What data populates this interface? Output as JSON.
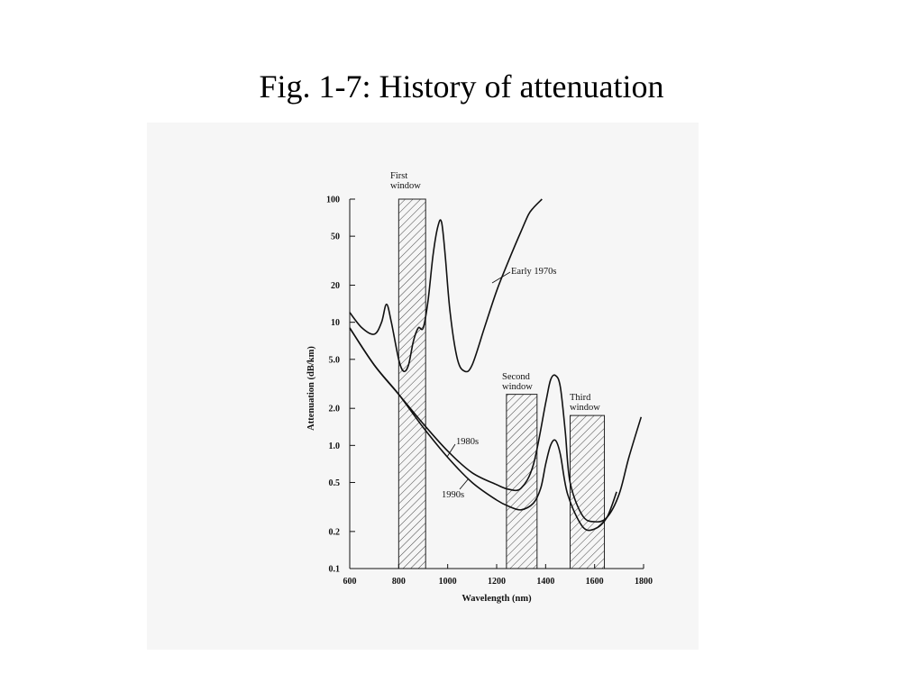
{
  "slide": {
    "title": "Fig. 1-7: History of attenuation"
  },
  "chart_data": {
    "type": "line",
    "xlabel": "Wavelength (nm)",
    "ylabel": "Attenuation (dB/km)",
    "xlim": [
      600,
      1800
    ],
    "ylim": [
      0.1,
      100
    ],
    "yscale": "log",
    "grid": false,
    "x_ticks": [
      600,
      800,
      1000,
      1200,
      1400,
      1600,
      1800
    ],
    "x_tick_labels": [
      "600",
      "800",
      "1000",
      "1200",
      "1400",
      "1600",
      "1800"
    ],
    "y_ticks": [
      0.1,
      0.2,
      0.5,
      1.0,
      2.0,
      5.0,
      10,
      20,
      50,
      100
    ],
    "y_tick_labels": [
      "0.1",
      "0.2",
      "0.5",
      "1.0",
      "2.0",
      "5.0",
      "10",
      "20",
      "50",
      "100"
    ],
    "windows": [
      {
        "label": [
          "First",
          "window"
        ],
        "x_range": [
          800,
          910
        ],
        "top": 100
      },
      {
        "label": [
          "Second",
          "window"
        ],
        "x_range": [
          1240,
          1365
        ],
        "top": 2.6
      },
      {
        "label": [
          "Third",
          "window"
        ],
        "x_range": [
          1500,
          1640
        ],
        "top": 1.75
      }
    ],
    "series": [
      {
        "name": "Early 1970s",
        "x": [
          600,
          650,
          700,
          730,
          750,
          770,
          800,
          820,
          840,
          860,
          880,
          900,
          920,
          940,
          960,
          975,
          990,
          1010,
          1040,
          1070,
          1100,
          1150,
          1200,
          1250,
          1300,
          1330,
          1350,
          1385
        ],
        "y": [
          12,
          9,
          8,
          10,
          14,
          10,
          5,
          4,
          4.5,
          7,
          9,
          9,
          15,
          35,
          60,
          65,
          35,
          12,
          5,
          4,
          4.5,
          9,
          18,
          32,
          55,
          75,
          85,
          100
        ]
      },
      {
        "name": "1980s",
        "x": [
          600,
          700,
          800,
          900,
          1000,
          1100,
          1200,
          1250,
          1300,
          1350,
          1400,
          1420,
          1440,
          1460,
          1480,
          1500,
          1550,
          1600,
          1650,
          1700,
          1740,
          1790
        ],
        "y": [
          9,
          4.5,
          2.6,
          1.5,
          0.9,
          0.6,
          0.48,
          0.44,
          0.45,
          0.7,
          2.2,
          3.4,
          3.7,
          3.0,
          1.3,
          0.5,
          0.27,
          0.24,
          0.26,
          0.4,
          0.8,
          1.7
        ]
      },
      {
        "name": "1990s",
        "x": [
          600,
          700,
          800,
          900,
          1000,
          1100,
          1200,
          1250,
          1300,
          1350,
          1380,
          1400,
          1420,
          1440,
          1460,
          1490,
          1550,
          1600,
          1650,
          1690
        ],
        "y": [
          9,
          4.5,
          2.6,
          1.4,
          0.8,
          0.5,
          0.36,
          0.32,
          0.3,
          0.34,
          0.45,
          0.7,
          1.0,
          1.1,
          0.85,
          0.4,
          0.22,
          0.21,
          0.26,
          0.42
        ]
      }
    ],
    "annotations": [
      {
        "text": "Early 1970s",
        "series": "Early 1970s"
      },
      {
        "text": "1980s",
        "series": "1980s"
      },
      {
        "text": "1990s",
        "series": "1990s"
      }
    ]
  }
}
